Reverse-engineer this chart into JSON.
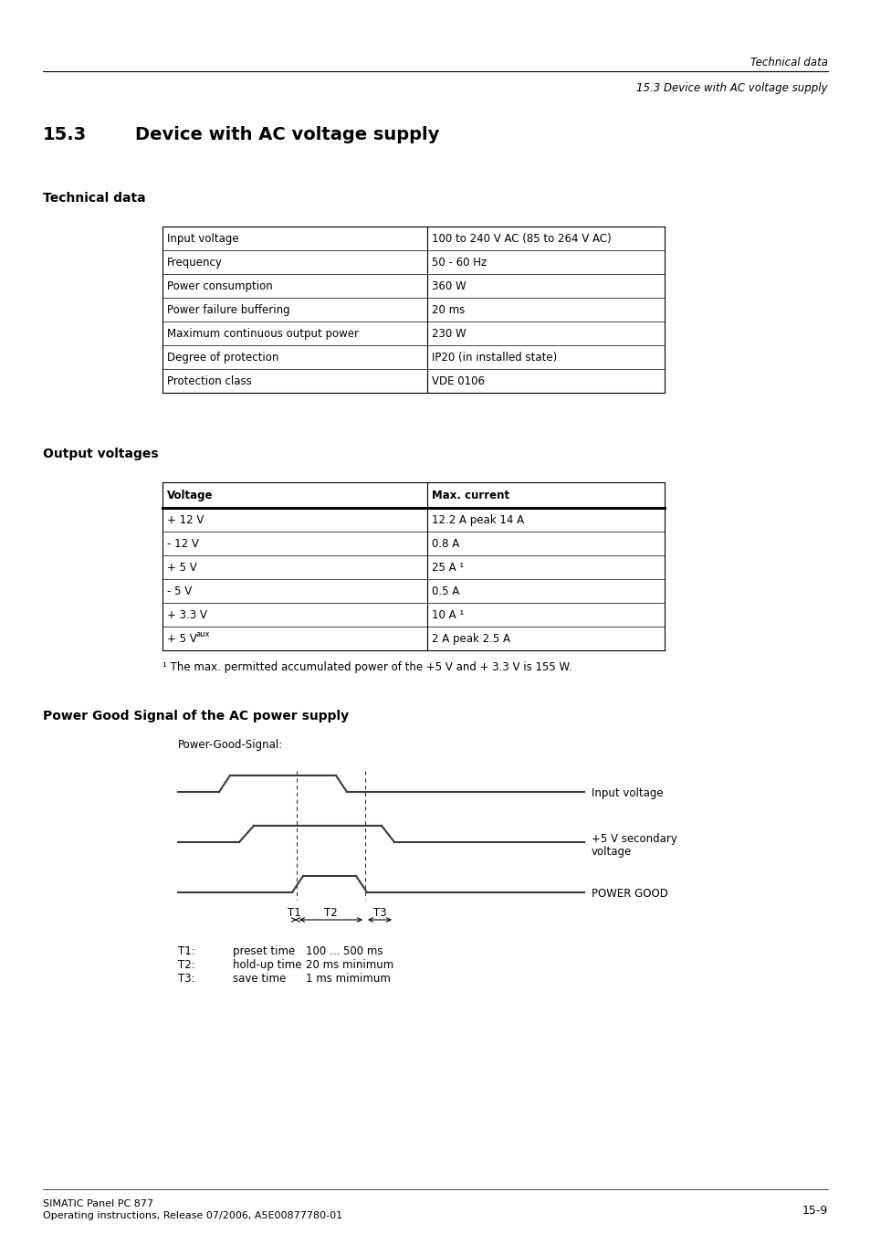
{
  "page_header_line1": "Technical data",
  "page_header_line2": "15.3 Device with AC voltage supply",
  "section_number": "15.3",
  "section_title": "Device with AC voltage supply",
  "subsection1": "Technical data",
  "tech_table": {
    "rows": [
      [
        "Input voltage",
        "100 to 240 V AC (85 to 264 V AC)"
      ],
      [
        "Frequency",
        "50 - 60 Hz"
      ],
      [
        "Power consumption",
        "360 W"
      ],
      [
        "Power failure buffering",
        "20 ms"
      ],
      [
        "Maximum continuous output power",
        "230 W"
      ],
      [
        "Degree of protection",
        "IP20 (in installed state)"
      ],
      [
        "Protection class",
        "VDE 0106"
      ]
    ]
  },
  "subsection2": "Output voltages",
  "output_table": {
    "header": [
      "Voltage",
      "Max. current"
    ],
    "rows": [
      [
        "+ 12 V",
        "12.2 A peak 14 A"
      ],
      [
        "- 12 V",
        "0.8 A"
      ],
      [
        "+ 5 V",
        "25 A ¹"
      ],
      [
        "- 5 V",
        "0.5 A"
      ],
      [
        "+ 3.3 V",
        "10 A ¹"
      ],
      [
        "+ 5 V_aux",
        "2 A peak 2.5 A"
      ]
    ],
    "footnote": "¹ The max. permitted accumulated power of the +5 V and + 3.3 V is 155 W."
  },
  "subsection3": "Power Good Signal of the AC power supply",
  "signal_label": "Power-Good-Signal:",
  "timing_table": [
    [
      "T1:",
      "preset time",
      "100 ... 500 ms"
    ],
    [
      "T2:",
      "hold-up time",
      "20 ms minimum"
    ],
    [
      "T3:",
      "save time",
      "1 ms mimimum"
    ]
  ],
  "footer_line1": "SIMATIC Panel PC 877",
  "footer_line2": "Operating instructions, Release 07/2006, A5E00877780-01",
  "footer_page": "15-9"
}
